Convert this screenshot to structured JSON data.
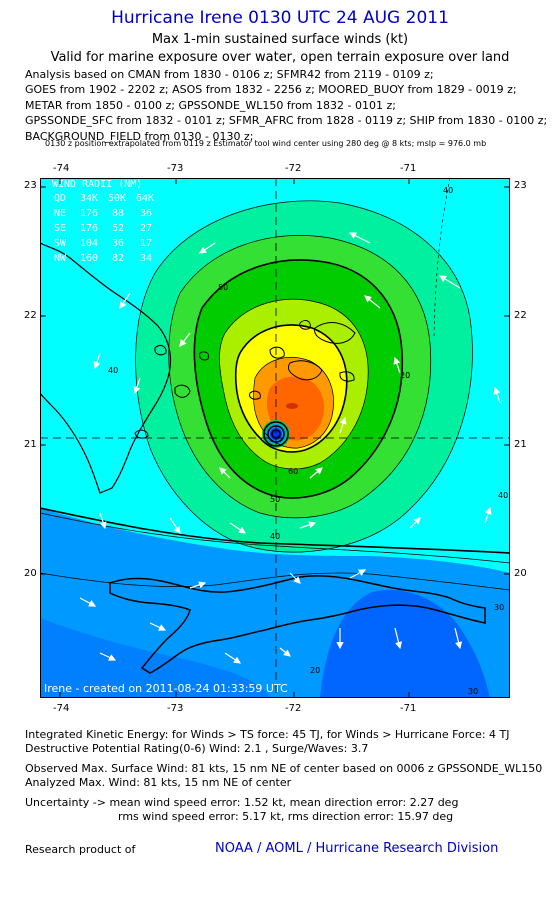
{
  "header": {
    "title": "Hurricane Irene 0130 UTC 24 AUG 2011",
    "subtitle": "Max 1-min sustained surface winds (kt)",
    "validity": "Valid for marine exposure over water, open terrain exposure over land",
    "analysis_lines": [
      "Analysis based on CMAN from 1830 - 0106 z; SFMR42 from 2119 - 0109 z;",
      "GOES from 1902 - 2202 z; ASOS from 1832 - 2256 z; MOORED_BUOY from 1829 - 0019 z;",
      "METAR from 1850 - 0100 z; GPSSONDE_WL150 from 1832 - 0101 z;",
      "GPSSONDE_SFC from 1832 - 0101 z; SFMR_AFRC from 1828 - 0119 z; SHIP from 1830 - 0100 z;",
      "BACKGROUND_FIELD from 0130 - 0130 z;"
    ],
    "note": "0130 z position extrapolated from 0119 z Estimator tool wind center using 280 deg @ 8 kts; mslp = 976.0 mb"
  },
  "map": {
    "x_ticks": [
      "-74",
      "-73",
      "-72",
      "-71"
    ],
    "y_ticks": [
      "23",
      "22",
      "21",
      "20"
    ],
    "wind_radii": {
      "heading": "WIND RADII (NM)",
      "header_row": [
        "QD",
        "34K",
        "50K",
        "64K"
      ],
      "rows": [
        [
          "NE",
          "176",
          "88",
          "36"
        ],
        [
          "SE",
          "176",
          "52",
          "27"
        ],
        [
          "SW",
          "104",
          "36",
          "17"
        ],
        [
          "NW",
          "160",
          "82",
          "34"
        ]
      ]
    },
    "contour_labels": [
      "40",
      "50",
      "60",
      "50",
      "40",
      "40",
      "40",
      "30",
      "20",
      "30",
      "20"
    ],
    "footer": "Irene - created on 2011-08-24 01:33:59 UTC",
    "colors": {
      "cyan": "#00ffff",
      "light_blue": "#00ccff",
      "medium_blue": "#0099ff",
      "dark_blue": "#0066ff",
      "aqua_green": "#00f0a0",
      "green": "#33e033",
      "dark_green": "#00cc00",
      "yellow_green": "#aaee00",
      "yellow": "#ffff00",
      "orange": "#ff9900",
      "red_orange": "#ff6600",
      "center_blue": "#0033ff"
    }
  },
  "stats": {
    "ike": "Integrated Kinetic Energy:  for Winds > TS force: 45 TJ,  for Winds > Hurricane Force: 4 TJ",
    "dpr": "Destructive Potential Rating(0-6)   Wind: 2.1 , Surge/Waves: 3.7",
    "observed": "Observed Max. Surface Wind: 81 kts, 15 nm NE of center based on 0006 z GPSSONDE_WL150",
    "analyzed": "Analyzed Max. Wind: 81 kts, 15 nm NE of center",
    "uncertainty1": "Uncertainty -> mean wind speed error: 1.52 kt,   mean direction error: 2.27 deg",
    "uncertainty2": "rms wind speed error: 5.17 kt,   rms direction error: 15.97 deg",
    "research": "Research product of",
    "org": "NOAA / AOML / Hurricane Research Division"
  }
}
